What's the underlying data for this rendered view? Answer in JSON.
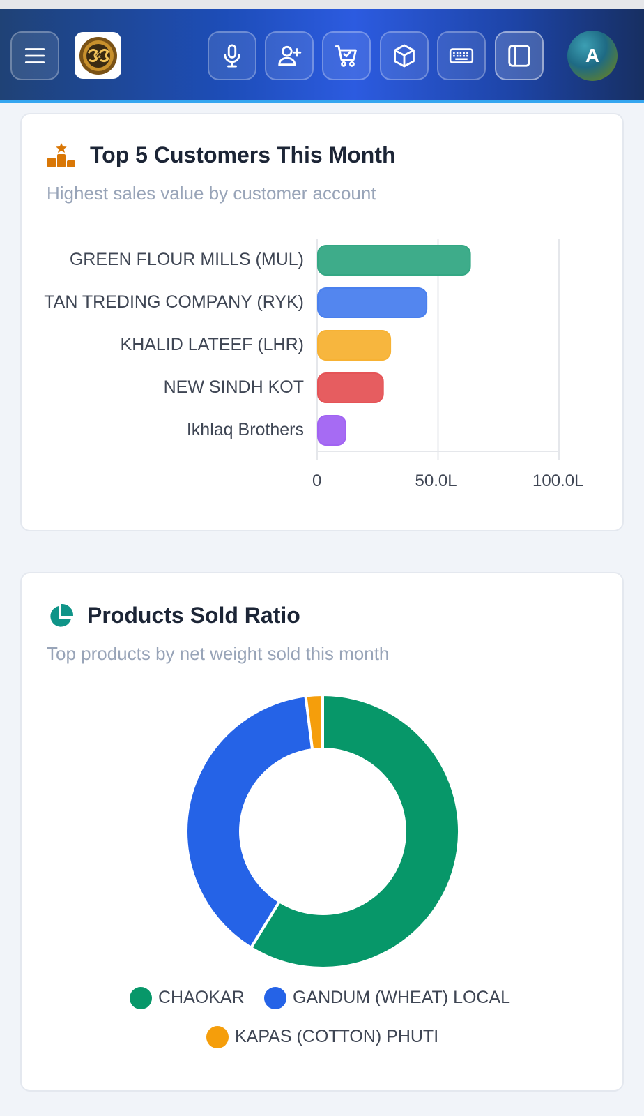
{
  "topbar": {
    "avatar_letter": "A",
    "buttons": [
      "menu-icon",
      "microphone-icon",
      "add-user-icon",
      "cart-icon",
      "package-icon",
      "keyboard-icon",
      "sidebar-icon"
    ]
  },
  "top_customers": {
    "title": "Top 5 Customers This Month",
    "subtitle": "Highest sales value by customer account",
    "chart_data": {
      "type": "bar",
      "orientation": "horizontal",
      "categories": [
        "GREEN FLOUR MILLS (MUL)",
        "TAN TREDING COMPANY (RYK)",
        "KHALID LATEEF (LHR)",
        "NEW SINDH KOT",
        "Ikhlaq Brothers"
      ],
      "values": [
        63,
        45,
        30,
        27,
        11.5
      ],
      "colors": [
        "#34a884",
        "#4a80ee",
        "#f7b234",
        "#e55457",
        "#a163f2"
      ],
      "xlim": [
        0,
        100
      ],
      "xticks": [
        "0",
        "50.0L",
        "100.0L"
      ],
      "grid": true
    }
  },
  "products_ratio": {
    "title": "Products Sold Ratio",
    "subtitle": "Top products by net weight sold this month",
    "chart_data": {
      "type": "pie",
      "style": "donut",
      "labels": [
        "CHAOKAR",
        "GANDUM (WHEAT) LOCAL",
        "KAPAS (COTTON) PHUTI"
      ],
      "values": [
        58.8,
        39.2,
        2.0
      ],
      "colors": [
        "#079769",
        "#2563e7",
        "#f59e0b"
      ],
      "legend": "bottom"
    }
  }
}
